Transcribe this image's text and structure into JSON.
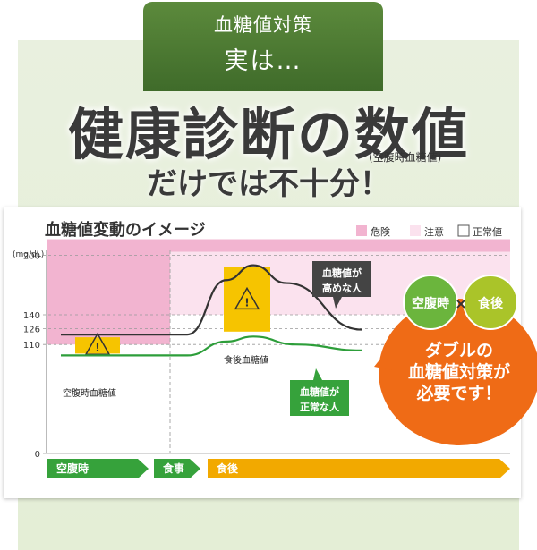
{
  "header": {
    "line1": "血糖値対策",
    "line2": "実は…",
    "headline": "健康診断の数値",
    "headline_note": "(空腹時血糖値)",
    "headline2": "だけでは不十分！"
  },
  "chart_data": {
    "type": "line",
    "title": "血糖値変動のイメージ",
    "unit": "(mg/dL)",
    "y_ticks": [
      0,
      110,
      126,
      140,
      200
    ],
    "legend": [
      {
        "label": "危険",
        "color": "#f2b4d0"
      },
      {
        "label": "注意",
        "color": "#fbe2ee"
      },
      {
        "label": "正常値",
        "color": "#ffffff"
      }
    ],
    "series": [
      {
        "name": "血糖値が高めな人",
        "color": "#333333",
        "points": [
          [
            0,
            120
          ],
          [
            0.42,
            120
          ],
          [
            0.55,
            175
          ],
          [
            0.64,
            190
          ],
          [
            0.75,
            172
          ],
          [
            1.0,
            125
          ]
        ]
      },
      {
        "name": "血糖値が正常な人",
        "color": "#2d9e3a",
        "points": [
          [
            0,
            99
          ],
          [
            0.42,
            99
          ],
          [
            0.55,
            113
          ],
          [
            0.64,
            118
          ],
          [
            0.78,
            110
          ],
          [
            1.0,
            104
          ]
        ]
      }
    ],
    "annotations": {
      "fasting": "空腹時血糖値",
      "postmeal": "食後血糖値",
      "high_label": "血糖値が\n高めな人",
      "normal_label": "血糖値が\n正常な人"
    },
    "phases": [
      "空腹時",
      "食事",
      "食後"
    ]
  },
  "callout": {
    "badge_fasting": "空腹時",
    "times": "×",
    "badge_after": "食後",
    "message_l1": "ダブルの",
    "message_l2": "血糖値対策が",
    "message_l3": "必要です！"
  },
  "colors": {
    "orange": "#ef6b16",
    "green_badge": "#6bb53d",
    "yellow_badge": "#aac429",
    "green_arrow": "#36a23b",
    "orange_arrow": "#f2a900",
    "caution_fill": "#f6c400"
  }
}
